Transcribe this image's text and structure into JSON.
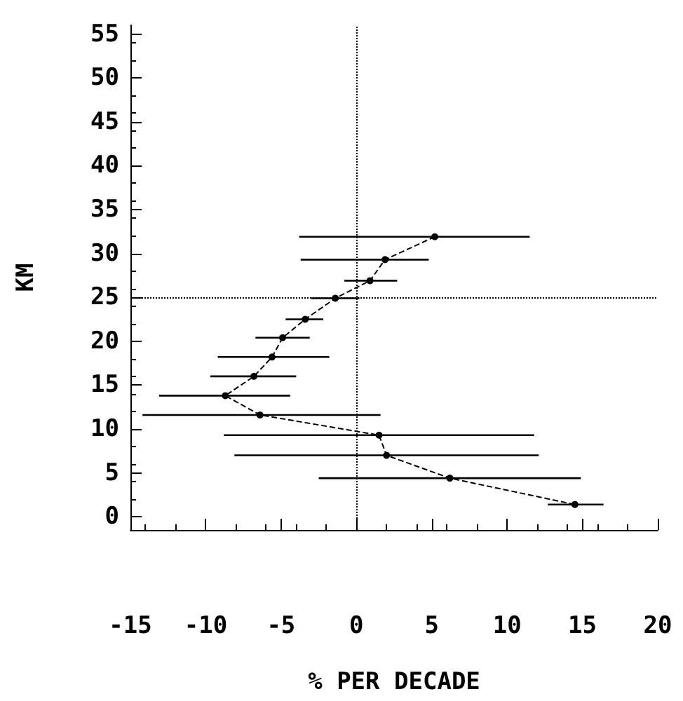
{
  "chart_data": {
    "type": "line",
    "xlabel": "% PER DECADE",
    "ylabel": "KM",
    "x": [
      5.2,
      1.9,
      0.9,
      -1.4,
      -3.4,
      -4.9,
      -5.6,
      -6.8,
      -8.7,
      -6.4,
      1.5,
      2.0,
      6.2,
      14.5
    ],
    "values": [
      31.9,
      29.3,
      26.9,
      24.9,
      22.5,
      20.4,
      18.2,
      16.0,
      13.8,
      11.6,
      9.3,
      7.0,
      4.4,
      1.4
    ],
    "xerrors": [
      [
        -3.8,
        11.5
      ],
      [
        -3.7,
        4.8
      ],
      [
        -0.8,
        2.7
      ],
      [
        -3.0,
        0.2
      ],
      [
        -4.7,
        -2.2
      ],
      [
        -6.7,
        -3.1
      ],
      [
        -9.2,
        -1.8
      ],
      [
        -9.7,
        -4.0
      ],
      [
        -13.1,
        -4.4
      ],
      [
        -14.2,
        1.6
      ],
      [
        -8.8,
        11.8
      ],
      [
        -8.1,
        12.1
      ],
      [
        -2.5,
        14.9
      ],
      [
        12.7,
        16.4
      ]
    ],
    "color": "#000000",
    "marker": "circle",
    "line_style": "dashed",
    "grid": false,
    "xlim": [
      -15,
      20
    ],
    "xticks": [
      -15,
      -10,
      -5,
      0,
      5,
      10,
      15,
      20
    ],
    "ylim": [
      -1.5,
      56
    ],
    "yticks": [
      0,
      5,
      10,
      15,
      20,
      25,
      30,
      35,
      40,
      45,
      50,
      55
    ],
    "ref_lines": [
      {
        "axis": "x",
        "value": 0,
        "line_style": "dotted"
      },
      {
        "axis": "y",
        "value": 25,
        "line_style": "dotted"
      }
    ]
  }
}
